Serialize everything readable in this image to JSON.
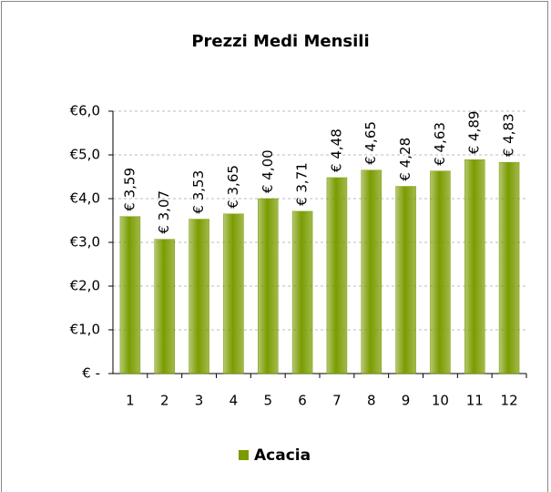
{
  "chart_data": {
    "type": "bar",
    "title": "Prezzi Medi Mensili",
    "categories": [
      "1",
      "2",
      "3",
      "4",
      "5",
      "6",
      "7",
      "8",
      "9",
      "10",
      "11",
      "12"
    ],
    "series": [
      {
        "name": "Acacia",
        "color": "#7a9c00",
        "values": [
          3.59,
          3.07,
          3.53,
          3.65,
          4.0,
          3.71,
          4.48,
          4.65,
          4.28,
          4.63,
          4.89,
          4.83
        ],
        "value_labels": [
          "€ 3,59",
          "€ 3,07",
          "€ 3,53",
          "€ 3,65",
          "€ 4,00",
          "€ 3,71",
          "€ 4,48",
          "€ 4,65",
          "€ 4,28",
          "€ 4,63",
          "€ 4,89",
          "€ 4,83"
        ]
      }
    ],
    "ylim": [
      0,
      6
    ],
    "yticks": [
      {
        "value": 0,
        "label": "€ -"
      },
      {
        "value": 1,
        "label": "€1,0"
      },
      {
        "value": 2,
        "label": "€2,0"
      },
      {
        "value": 3,
        "label": "€3,0"
      },
      {
        "value": 4,
        "label": "€4,0"
      },
      {
        "value": 5,
        "label": "€5,0"
      },
      {
        "value": 6,
        "label": "€6,0"
      }
    ],
    "grid": true,
    "legend": "bottom"
  }
}
